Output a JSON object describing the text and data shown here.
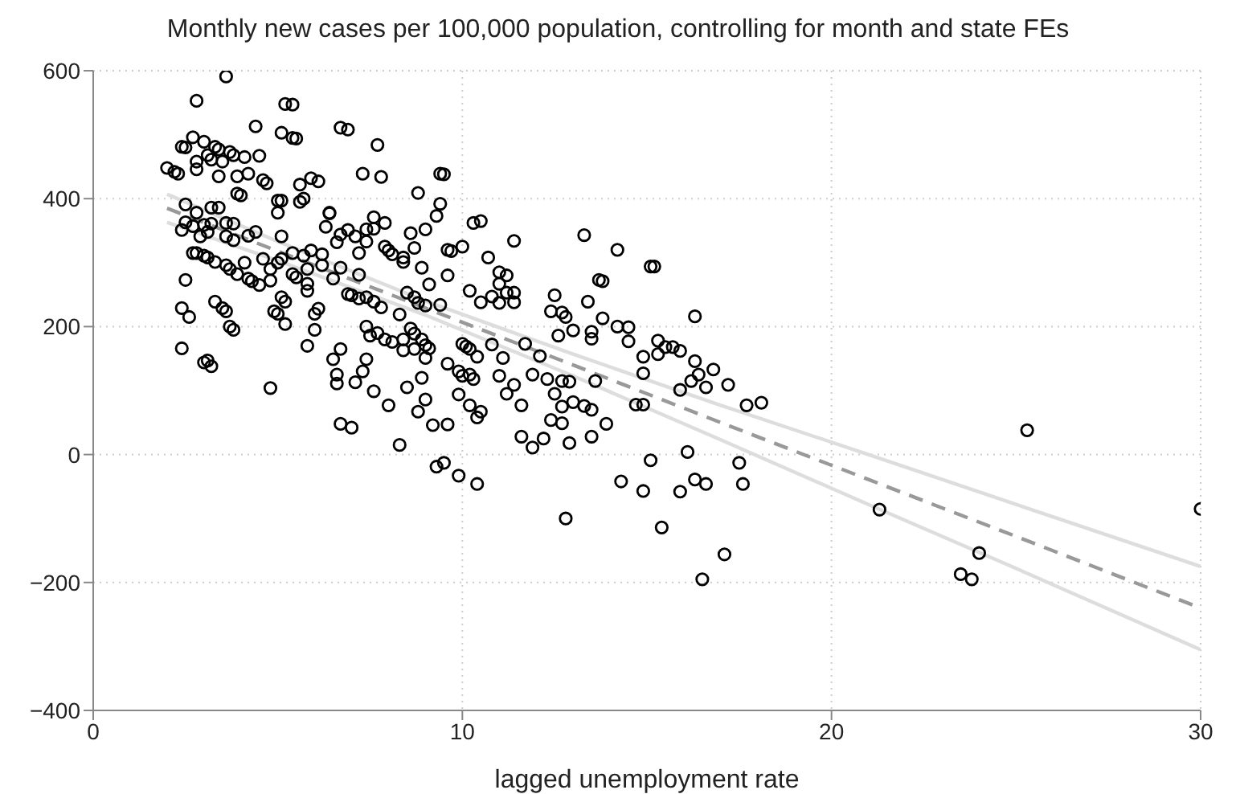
{
  "chart_data": {
    "type": "scatter",
    "title": "Monthly new cases per 100,000 population, controlling for month and state FEs",
    "xlabel": "lagged unemployment rate",
    "xlim": [
      0,
      30
    ],
    "xticks": [
      0,
      10,
      20,
      30
    ],
    "ylim": [
      -400,
      600
    ],
    "yticks": [
      -400,
      -200,
      0,
      200,
      400,
      600
    ],
    "grid": true,
    "series": [
      {
        "marker": "circle",
        "color": "#000000",
        "x": [
          2.0,
          2.2,
          2.3,
          2.4,
          2.5,
          2.8,
          2.7,
          3.0,
          2.8,
          2.8,
          3.1,
          3.3,
          3.2,
          3.4,
          3.5,
          3.6,
          3.4,
          3.7,
          3.8,
          3.9,
          4.1,
          4.4,
          4.5,
          3.9,
          4.0,
          4.2,
          4.6,
          4.7,
          5.1,
          5.2,
          5.4,
          5.4,
          5.5,
          5.0,
          5.1,
          5.0,
          5.6,
          5.7,
          5.6,
          5.9,
          6.1,
          6.4,
          6.7,
          6.9,
          7.3,
          7.7,
          7.8,
          7.6,
          7.9,
          8.8,
          9.4,
          9.5,
          9.4,
          10.3,
          10.5,
          2.5,
          2.8,
          3.2,
          3.4,
          2.5,
          2.7,
          3.0,
          3.2,
          3.6,
          3.8,
          2.4,
          3.1,
          2.9,
          3.6,
          3.8,
          4.2,
          4.4,
          2.7,
          2.8,
          3.0,
          3.1,
          3.3,
          3.6,
          4.1,
          3.7,
          3.9,
          4.2,
          4.3,
          4.5,
          4.8,
          4.8,
          5.0,
          5.1,
          5.1,
          4.6,
          5.4,
          5.4,
          5.5,
          5.8,
          5.7,
          5.9,
          6.2,
          6.3,
          6.4,
          6.2,
          5.8,
          6.5,
          6.7,
          6.6,
          6.7,
          6.9,
          7.1,
          7.4,
          7.4,
          7.2,
          7.2,
          7.6,
          7.9,
          8.0,
          8.1,
          8.4,
          8.4,
          8.6,
          8.7,
          8.9,
          9.0,
          9.1,
          9.3,
          9.6,
          9.7,
          10.0,
          9.6,
          2.5,
          2.4,
          2.6,
          2.4,
          3.0,
          3.1,
          3.2,
          3.3,
          3.5,
          3.6,
          3.7,
          3.8,
          4.8,
          4.9,
          5.0,
          5.1,
          5.2,
          5.2,
          5.8,
          5.8,
          6.0,
          6.1,
          6.0,
          6.5,
          6.7,
          6.6,
          6.6,
          6.9,
          7.0,
          7.2,
          7.4,
          7.6,
          7.8,
          7.4,
          7.5,
          7.7,
          7.4,
          7.3,
          7.1,
          7.6,
          6.7,
          7.0,
          7.9,
          8.1,
          8.4,
          8.4,
          8.3,
          8.6,
          8.7,
          8.7,
          8.5,
          8.7,
          8.8,
          9.0,
          8.9,
          9.0,
          9.0,
          9.1,
          8.5,
          8.9,
          9.0,
          8.8,
          8.0,
          8.3,
          9.2,
          9.6,
          9.4,
          9.6,
          9.9,
          10.0,
          10.1,
          10.2,
          10.0,
          10.2,
          10.3,
          9.9,
          10.2,
          10.4,
          10.5,
          10.4,
          10.8,
          10.2,
          10.5,
          10.8,
          10.7,
          11.0,
          11.2,
          11.0,
          11.2,
          11.4,
          11.4,
          11.0,
          11.4,
          11.1,
          11.0,
          11.2,
          11.4,
          11.7,
          12.1,
          11.6,
          11.6,
          11.9,
          12.2,
          11.9,
          12.3,
          12.5,
          12.4,
          12.7,
          12.8,
          12.6,
          13.0,
          12.5,
          12.7,
          12.9,
          12.4,
          12.7,
          12.7,
          13.0,
          13.3,
          13.5,
          12.9,
          12.8,
          13.3,
          13.4,
          13.8,
          13.5,
          13.5,
          13.6,
          14.2,
          14.5,
          14.5,
          13.9,
          13.5,
          13.7,
          13.8,
          14.2,
          15.1,
          15.2,
          14.9,
          14.9,
          14.7,
          14.9,
          14.3,
          14.9,
          15.1,
          15.4,
          15.3,
          15.5,
          15.7,
          15.3,
          15.9,
          15.9,
          16.2,
          16.3,
          16.3,
          16.4,
          16.6,
          16.8,
          17.2,
          16.1,
          16.3,
          16.6,
          15.9,
          17.1,
          16.5,
          17.5,
          17.6,
          17.7,
          18.1,
          21.3,
          23.5,
          23.8,
          24.0,
          25.3,
          30.0,
          9.3,
          9.5,
          9.9,
          10.4
        ],
        "values": [
          448,
          442,
          439,
          481,
          480,
          553,
          496,
          489,
          458,
          446,
          468,
          481,
          461,
          477,
          458,
          591,
          435,
          473,
          468,
          435,
          465,
          513,
          467,
          408,
          405,
          439,
          429,
          424,
          503,
          548,
          547,
          495,
          494,
          397,
          397,
          378,
          395,
          400,
          422,
          432,
          427,
          378,
          511,
          508,
          439,
          484,
          434,
          371,
          362,
          409,
          439,
          438,
          392,
          362,
          365,
          391,
          378,
          386,
          386,
          363,
          357,
          359,
          361,
          362,
          361,
          351,
          348,
          341,
          341,
          335,
          342,
          348,
          315,
          315,
          311,
          308,
          301,
          296,
          300,
          290,
          282,
          275,
          271,
          265,
          290,
          272,
          300,
          341,
          306,
          306,
          315,
          282,
          277,
          290,
          311,
          319,
          313,
          356,
          377,
          296,
          267,
          275,
          292,
          332,
          344,
          351,
          341,
          352,
          333,
          315,
          281,
          353,
          325,
          319,
          313,
          308,
          301,
          346,
          323,
          292,
          352,
          266,
          373,
          320,
          318,
          325,
          280,
          273,
          229,
          215,
          166,
          144,
          147,
          138,
          239,
          229,
          224,
          200,
          195,
          104,
          224,
          220,
          246,
          239,
          204,
          256,
          170,
          220,
          228,
          195,
          149,
          165,
          125,
          111,
          251,
          249,
          244,
          246,
          239,
          230,
          200,
          186,
          190,
          149,
          130,
          113,
          99,
          48,
          42,
          180,
          176,
          180,
          163,
          219,
          197,
          189,
          165,
          253,
          246,
          237,
          233,
          180,
          171,
          151,
          166,
          105,
          120,
          86,
          67,
          77,
          15,
          46,
          47,
          234,
          142,
          130,
          173,
          169,
          165,
          123,
          125,
          118,
          94,
          77,
          58,
          67,
          153,
          172,
          256,
          238,
          247,
          308,
          285,
          280,
          267,
          253,
          253,
          334,
          237,
          238,
          151,
          123,
          95,
          109,
          173,
          154,
          77,
          28,
          11,
          25,
          125,
          118,
          249,
          224,
          222,
          215,
          186,
          194,
          95,
          115,
          114,
          54,
          49,
          75,
          82,
          76,
          70,
          18,
          -100,
          343,
          239,
          213,
          181,
          192,
          115,
          200,
          199,
          177,
          48,
          28,
          273,
          271,
          320,
          294,
          294,
          153,
          127,
          78,
          78,
          -42,
          -57,
          -9,
          -114,
          178,
          168,
          168,
          157,
          162,
          101,
          115,
          216,
          146,
          125,
          105,
          133,
          109,
          4,
          -39,
          -46,
          -58,
          -156,
          -195,
          -13,
          -46,
          77,
          81,
          -86,
          -187,
          -195,
          -154,
          38,
          -85,
          -19,
          -13,
          -33,
          -46
        ]
      },
      {
        "type": "line",
        "color": "#dddddd",
        "line_style": "solid",
        "x": [
          2,
          5,
          9,
          13,
          17,
          21,
          25,
          30
        ],
        "values": [
          407,
          333,
          240,
          157,
          77,
          0,
          -78,
          -175
        ]
      },
      {
        "type": "line",
        "color": "#999999",
        "line_style": "dashed",
        "x": [
          2,
          5,
          9,
          13,
          17,
          21,
          25,
          30
        ],
        "values": [
          385,
          318,
          229,
          140,
          50,
          -39,
          -128,
          -240
        ]
      },
      {
        "type": "line",
        "color": "#dddddd",
        "line_style": "solid",
        "x": [
          2,
          5,
          9,
          13,
          17,
          21,
          25,
          30
        ],
        "values": [
          363,
          303,
          218,
          123,
          23,
          -78,
          -178,
          -305
        ]
      }
    ]
  }
}
